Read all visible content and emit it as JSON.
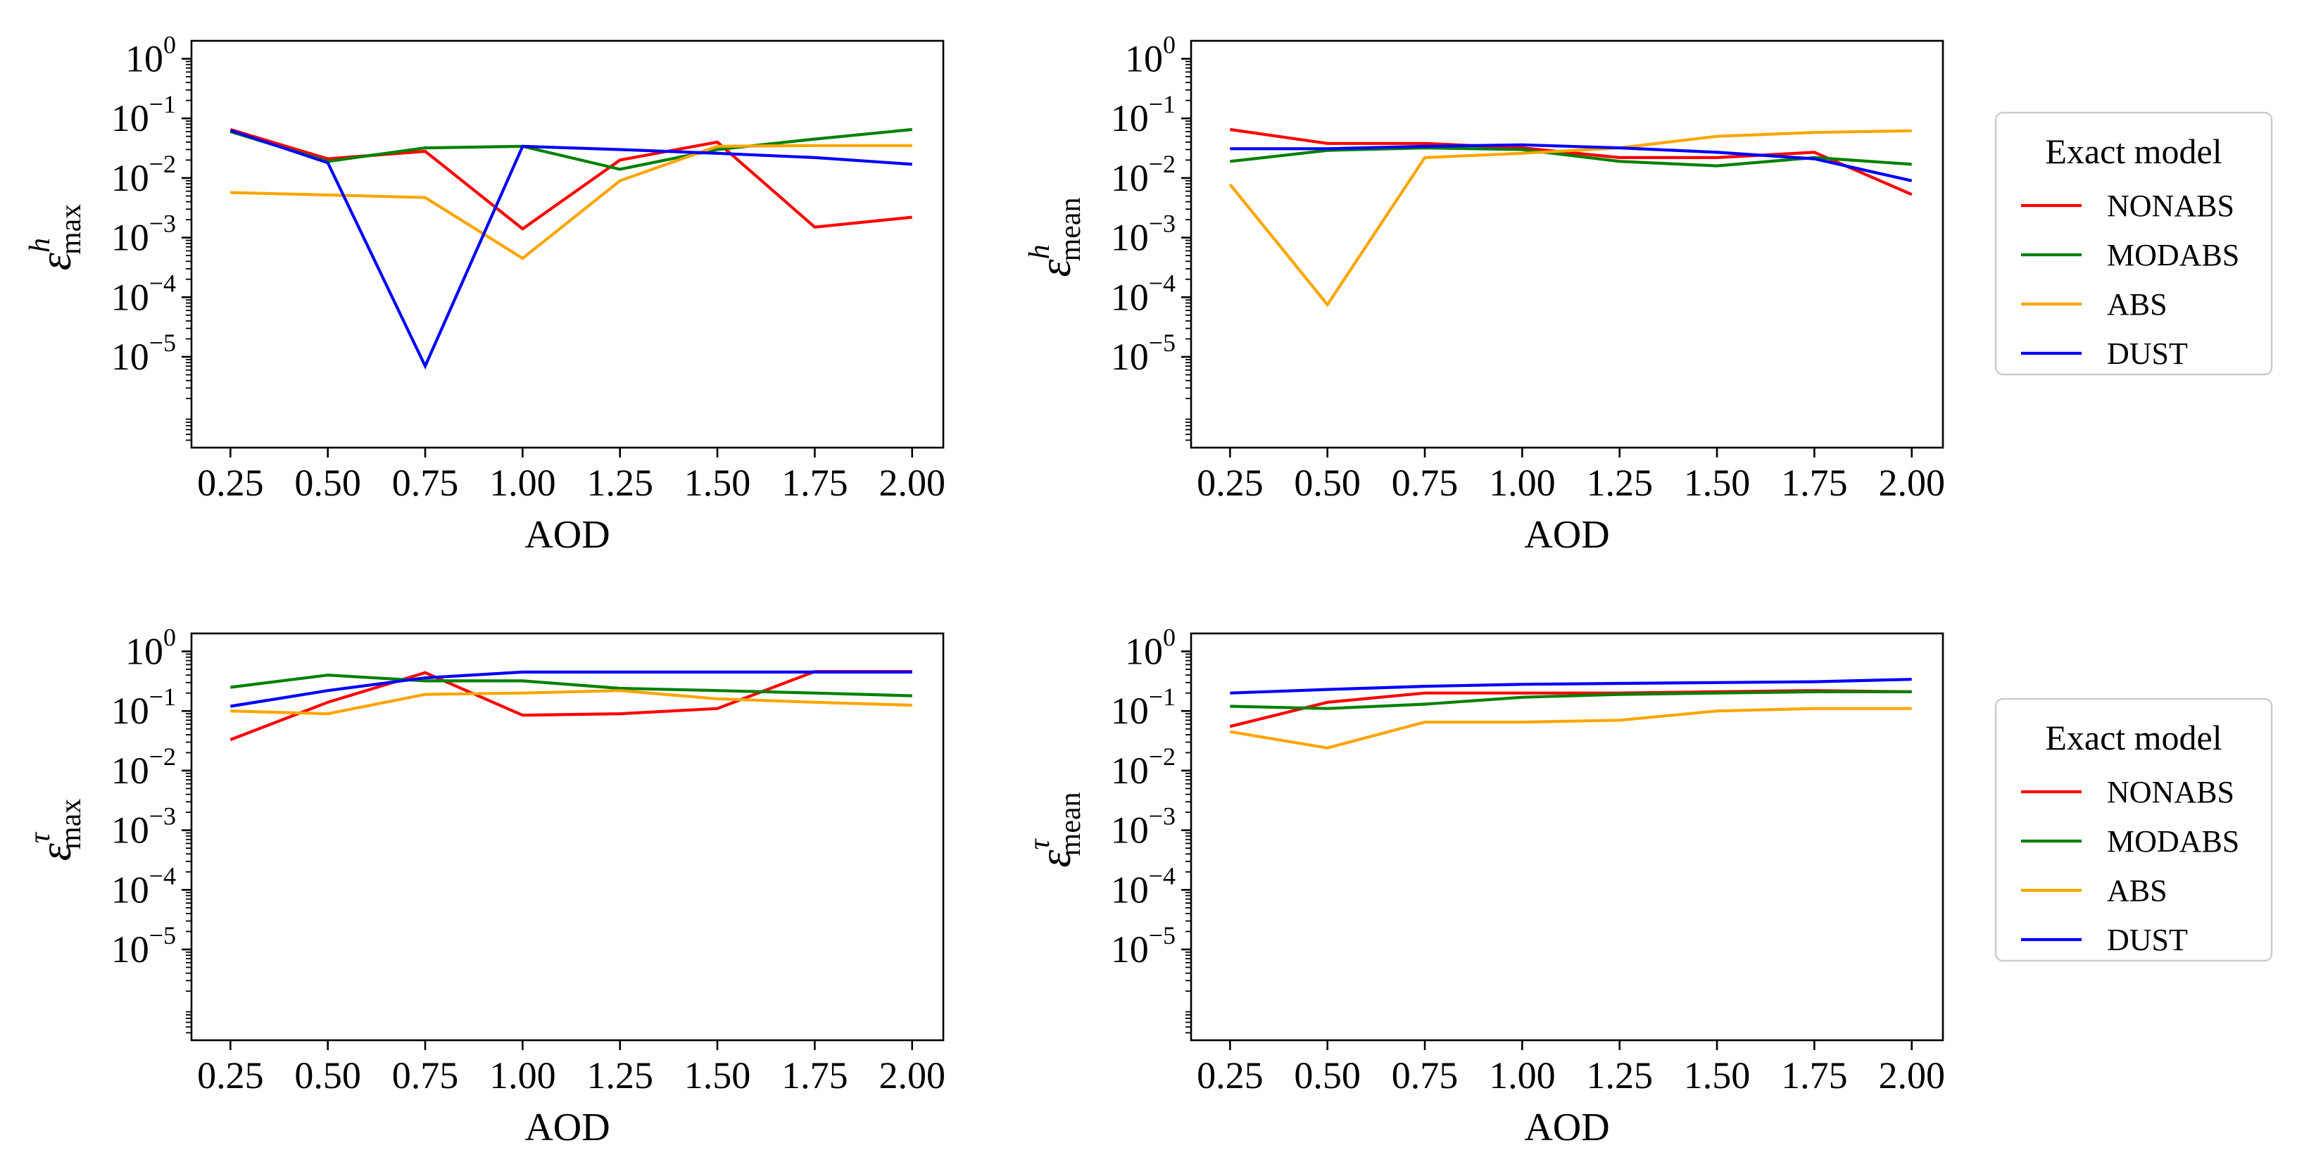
{
  "colors": {
    "NONABS": "#ff0000",
    "MODABS": "#008000",
    "ABS": "#ffa500",
    "DUST": "#0000ff"
  },
  "legends": [
    {
      "title": "Exact model",
      "entries": [
        "NONABS",
        "MODABS",
        "ABS",
        "DUST"
      ]
    },
    {
      "title": "Exact model",
      "entries": [
        "NONABS",
        "MODABS",
        "ABS",
        "DUST"
      ]
    }
  ],
  "chart_data": [
    {
      "type": "line",
      "xlabel": "AOD",
      "ylabel": {
        "symbol": "ε",
        "sup": "h",
        "sub": "max"
      },
      "yscale": "log",
      "ylim": [
        3e-07,
        2
      ],
      "xlim": [
        0.15,
        2.08
      ],
      "x": [
        0.25,
        0.5,
        0.75,
        1.0,
        1.25,
        1.5,
        1.75,
        2.0
      ],
      "x_ticks": [
        "0.25",
        "0.50",
        "0.75",
        "1.00",
        "1.25",
        "1.50",
        "1.75",
        "2.00"
      ],
      "y_ticks": [
        {
          "base": "10",
          "exp": "0",
          "value": 1
        },
        {
          "base": "10",
          "exp": "−1",
          "value": 0.1
        },
        {
          "base": "10",
          "exp": "−2",
          "value": 0.01
        },
        {
          "base": "10",
          "exp": "−3",
          "value": 0.001
        },
        {
          "base": "10",
          "exp": "−4",
          "value": 0.0001
        },
        {
          "base": "10",
          "exp": "−5",
          "value": 1e-05
        }
      ],
      "series": [
        {
          "name": "NONABS",
          "values": [
            0.065,
            0.021,
            0.028,
            0.0014,
            0.02,
            0.04,
            0.0015,
            0.0022
          ]
        },
        {
          "name": "MODABS",
          "values": [
            0.06,
            0.019,
            0.032,
            0.034,
            0.014,
            0.03,
            0.045,
            0.065
          ]
        },
        {
          "name": "ABS",
          "values": [
            0.0057,
            0.0052,
            0.0047,
            0.00045,
            0.009,
            0.034,
            0.035,
            0.035
          ]
        },
        {
          "name": "DUST",
          "values": [
            0.063,
            0.018,
            7e-06,
            0.034,
            0.03,
            0.026,
            0.022,
            0.017
          ]
        }
      ]
    },
    {
      "type": "line",
      "xlabel": "AOD",
      "ylabel": {
        "symbol": "ε",
        "sup": "h",
        "sub": "mean"
      },
      "yscale": "log",
      "ylim": [
        3e-07,
        2
      ],
      "xlim": [
        0.15,
        2.08
      ],
      "x": [
        0.25,
        0.5,
        0.75,
        1.0,
        1.25,
        1.5,
        1.75,
        2.0
      ],
      "x_ticks": [
        "0.25",
        "0.50",
        "0.75",
        "1.00",
        "1.25",
        "1.50",
        "1.75",
        "2.00"
      ],
      "y_ticks": [
        {
          "base": "10",
          "exp": "0",
          "value": 1
        },
        {
          "base": "10",
          "exp": "−1",
          "value": 0.1
        },
        {
          "base": "10",
          "exp": "−2",
          "value": 0.01
        },
        {
          "base": "10",
          "exp": "−3",
          "value": 0.001
        },
        {
          "base": "10",
          "exp": "−4",
          "value": 0.0001
        },
        {
          "base": "10",
          "exp": "−5",
          "value": 1e-05
        }
      ],
      "series": [
        {
          "name": "NONABS",
          "values": [
            0.065,
            0.038,
            0.038,
            0.032,
            0.022,
            0.022,
            0.027,
            0.0053
          ]
        },
        {
          "name": "MODABS",
          "values": [
            0.019,
            0.029,
            0.032,
            0.03,
            0.019,
            0.016,
            0.022,
            0.017
          ]
        },
        {
          "name": "ABS",
          "values": [
            0.0078,
            7.5e-05,
            0.022,
            0.026,
            0.032,
            0.05,
            0.058,
            0.062
          ]
        },
        {
          "name": "DUST",
          "values": [
            0.031,
            0.031,
            0.034,
            0.036,
            0.032,
            0.027,
            0.021,
            0.009
          ]
        }
      ]
    },
    {
      "type": "line",
      "xlabel": "AOD",
      "ylabel": {
        "symbol": "ε",
        "sup": "τ",
        "sub": "max"
      },
      "yscale": "log",
      "ylim": [
        3e-07,
        2
      ],
      "xlim": [
        0.15,
        2.08
      ],
      "x": [
        0.25,
        0.5,
        0.75,
        1.0,
        1.25,
        1.5,
        1.75,
        2.0
      ],
      "x_ticks": [
        "0.25",
        "0.50",
        "0.75",
        "1.00",
        "1.25",
        "1.50",
        "1.75",
        "2.00"
      ],
      "y_ticks": [
        {
          "base": "10",
          "exp": "0",
          "value": 1
        },
        {
          "base": "10",
          "exp": "−1",
          "value": 0.1
        },
        {
          "base": "10",
          "exp": "−2",
          "value": 0.01
        },
        {
          "base": "10",
          "exp": "−3",
          "value": 0.001
        },
        {
          "base": "10",
          "exp": "−4",
          "value": 0.0001
        },
        {
          "base": "10",
          "exp": "−5",
          "value": 1e-05
        }
      ],
      "series": [
        {
          "name": "NONABS",
          "values": [
            0.033,
            0.14,
            0.44,
            0.085,
            0.09,
            0.11,
            0.46,
            0.46
          ]
        },
        {
          "name": "MODABS",
          "values": [
            0.25,
            0.4,
            0.32,
            0.32,
            0.24,
            0.22,
            0.2,
            0.18
          ]
        },
        {
          "name": "ABS",
          "values": [
            0.1,
            0.09,
            0.19,
            0.2,
            0.22,
            0.16,
            0.14,
            0.125
          ]
        },
        {
          "name": "DUST",
          "values": [
            0.12,
            0.22,
            0.36,
            0.45,
            0.45,
            0.45,
            0.45,
            0.45
          ]
        }
      ]
    },
    {
      "type": "line",
      "xlabel": "AOD",
      "ylabel": {
        "symbol": "ε",
        "sup": "τ",
        "sub": "mean"
      },
      "yscale": "log",
      "ylim": [
        3e-07,
        2
      ],
      "xlim": [
        0.15,
        2.08
      ],
      "x": [
        0.25,
        0.5,
        0.75,
        1.0,
        1.25,
        1.5,
        1.75,
        2.0
      ],
      "x_ticks": [
        "0.25",
        "0.50",
        "0.75",
        "1.00",
        "1.25",
        "1.50",
        "1.75",
        "2.00"
      ],
      "y_ticks": [
        {
          "base": "10",
          "exp": "0",
          "value": 1
        },
        {
          "base": "10",
          "exp": "−1",
          "value": 0.1
        },
        {
          "base": "10",
          "exp": "−2",
          "value": 0.01
        },
        {
          "base": "10",
          "exp": "−3",
          "value": 0.001
        },
        {
          "base": "10",
          "exp": "−4",
          "value": 0.0001
        },
        {
          "base": "10",
          "exp": "−5",
          "value": 1e-05
        }
      ],
      "series": [
        {
          "name": "NONABS",
          "values": [
            0.055,
            0.14,
            0.2,
            0.2,
            0.2,
            0.21,
            0.22,
            0.21
          ]
        },
        {
          "name": "MODABS",
          "values": [
            0.12,
            0.11,
            0.13,
            0.17,
            0.19,
            0.2,
            0.21,
            0.21
          ]
        },
        {
          "name": "ABS",
          "values": [
            0.045,
            0.024,
            0.065,
            0.065,
            0.07,
            0.1,
            0.11,
            0.11
          ]
        },
        {
          "name": "DUST",
          "values": [
            0.2,
            0.23,
            0.26,
            0.28,
            0.29,
            0.3,
            0.31,
            0.34
          ]
        }
      ]
    }
  ]
}
